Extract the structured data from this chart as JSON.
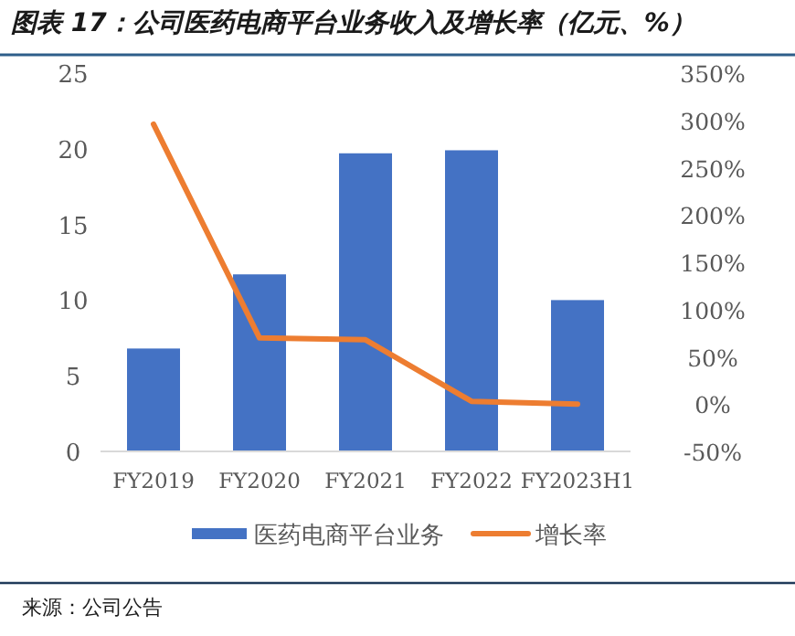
{
  "chart_data": {
    "type": "bar",
    "title": "图表 17：公司医药电商平台业务收入及增长率（亿元、%）",
    "categories": [
      "FY2019",
      "FY2020",
      "FY2021",
      "FY2022",
      "FY2023H1"
    ],
    "series": [
      {
        "name": "医药电商平台业务",
        "color": "#4472c4",
        "values": [
          6.8,
          11.7,
          19.7,
          19.9,
          10.0
        ]
      },
      {
        "name": "增长率",
        "type": "line",
        "axis": "y2",
        "color": "#ed7d31",
        "values": [
          296,
          70,
          68,
          3,
          0
        ]
      }
    ],
    "ylim": [
      0,
      25
    ],
    "yticks": [
      0,
      5,
      10,
      15,
      20,
      25
    ],
    "y2lim": [
      -50,
      350
    ],
    "y2ticks": [
      {
        "value": -50,
        "label": "-50%"
      },
      {
        "value": 0,
        "label": "0%"
      },
      {
        "value": 50,
        "label": "50%"
      },
      {
        "value": 100,
        "label": "100%"
      },
      {
        "value": 150,
        "label": "150%"
      },
      {
        "value": 200,
        "label": "200%"
      },
      {
        "value": 250,
        "label": "250%"
      },
      {
        "value": 300,
        "label": "300%"
      },
      {
        "value": 350,
        "label": "350%"
      }
    ],
    "legend": "bottom",
    "grid": false,
    "annotations": [
      "来源：公司公告"
    ]
  }
}
